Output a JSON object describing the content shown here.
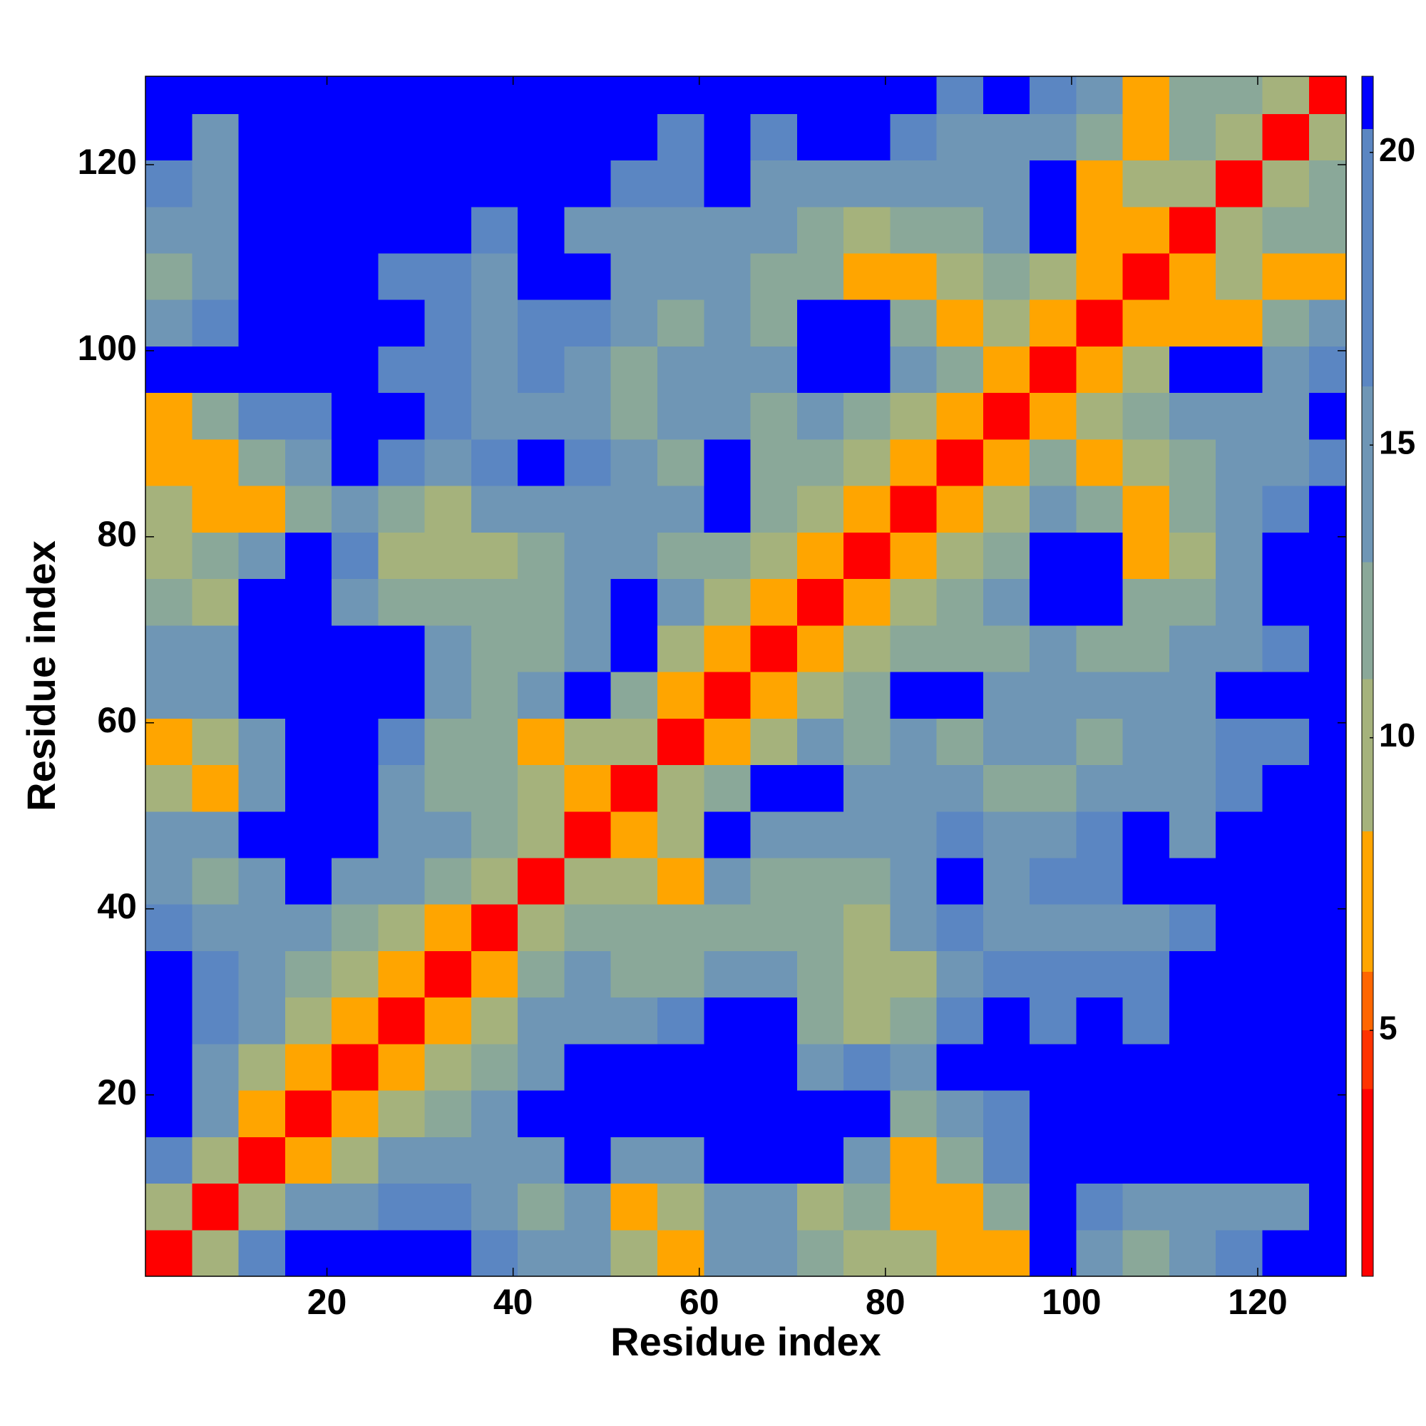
{
  "chart_data": {
    "type": "heatmap",
    "x_label": "Residue index",
    "y_label": "Residue index",
    "x": [
      3,
      8,
      13,
      18,
      23,
      28,
      33,
      38,
      43,
      48,
      53,
      58,
      63,
      68,
      73,
      78,
      83,
      88,
      93,
      98,
      103,
      108,
      113,
      118,
      123,
      128
    ],
    "y": [
      3,
      8,
      13,
      18,
      23,
      28,
      33,
      38,
      43,
      48,
      53,
      58,
      63,
      68,
      73,
      78,
      83,
      88,
      93,
      98,
      103,
      108,
      113,
      118,
      123,
      128
    ],
    "z": [
      [
        3.8,
        10,
        16,
        21,
        21,
        21,
        21,
        16,
        14,
        15,
        9,
        7,
        14,
        13,
        12,
        10,
        9,
        8,
        7,
        21,
        14,
        12,
        13,
        16,
        21,
        21
      ],
      [
        10,
        3.8,
        10,
        14,
        15,
        16,
        16,
        14,
        12,
        14,
        7,
        9,
        15,
        14,
        10,
        11,
        8,
        7,
        12,
        21,
        16,
        15,
        15,
        15,
        15,
        21
      ],
      [
        16,
        10,
        3.8,
        7,
        9,
        14,
        15,
        13,
        14,
        21,
        13,
        14,
        21,
        21,
        21,
        13,
        7,
        12,
        16,
        21,
        21,
        21,
        21,
        21,
        21,
        21
      ],
      [
        21,
        14,
        7,
        3.8,
        7,
        9,
        12,
        14,
        21,
        21,
        21,
        21,
        21,
        21,
        21,
        21,
        12,
        15,
        16,
        21,
        21,
        21,
        21,
        21,
        21,
        21
      ],
      [
        21,
        15,
        9,
        7,
        3.8,
        7,
        9,
        12,
        14,
        21,
        21,
        21,
        21,
        21,
        15,
        16,
        14,
        21,
        21,
        21,
        21,
        21,
        21,
        21,
        21,
        21
      ],
      [
        21,
        16,
        14,
        9,
        7,
        3.8,
        7,
        9,
        13,
        14,
        15,
        16,
        21,
        21,
        11,
        10,
        12,
        16,
        21,
        16,
        21,
        16,
        21,
        21,
        21,
        21
      ],
      [
        21,
        16,
        15,
        12,
        9,
        7,
        3.8,
        7,
        12,
        13,
        12,
        12,
        15,
        14,
        11,
        9,
        10,
        15,
        16,
        16,
        16,
        16,
        21,
        21,
        21,
        21
      ],
      [
        16,
        14,
        13,
        14,
        12,
        9,
        7,
        3.8,
        9,
        12,
        11,
        11,
        12,
        12,
        11,
        10,
        14,
        16,
        15,
        15,
        15,
        15,
        16,
        21,
        21,
        21
      ],
      [
        14,
        12,
        14,
        21,
        14,
        13,
        12,
        9,
        3.8,
        9,
        9,
        7,
        14,
        12,
        12,
        12,
        15,
        21,
        14,
        16,
        16,
        21,
        21,
        21,
        21,
        21
      ],
      [
        15,
        14,
        21,
        21,
        21,
        14,
        13,
        12,
        9,
        3.8,
        7,
        10,
        21,
        15,
        14,
        15,
        15,
        16,
        13,
        14,
        16,
        21,
        15,
        21,
        21,
        21
      ],
      [
        9,
        7,
        13,
        21,
        21,
        15,
        12,
        11,
        9,
        7,
        3.8,
        9,
        12,
        21,
        21,
        15,
        14,
        13,
        12,
        12,
        14,
        15,
        14,
        16,
        21,
        21
      ],
      [
        7,
        9,
        14,
        21,
        21,
        16,
        12,
        11,
        7,
        10,
        9,
        3.8,
        7,
        10,
        14,
        12,
        14,
        11,
        14,
        13,
        12,
        14,
        15,
        16,
        16,
        21
      ],
      [
        14,
        15,
        21,
        21,
        21,
        21,
        15,
        12,
        14,
        21,
        12,
        7,
        3.8,
        7,
        9,
        11,
        21,
        21,
        14,
        15,
        14,
        13,
        14,
        21,
        21,
        21
      ],
      [
        13,
        14,
        21,
        21,
        21,
        21,
        14,
        12,
        12,
        15,
        21,
        10,
        7,
        3.8,
        7,
        9,
        12,
        11,
        12,
        14,
        12,
        12,
        13,
        15,
        16,
        21
      ],
      [
        12,
        10,
        21,
        21,
        15,
        11,
        11,
        11,
        12,
        14,
        21,
        14,
        9,
        7,
        3.8,
        7,
        9,
        12,
        13,
        21,
        21,
        11,
        12,
        15,
        21,
        21
      ],
      [
        10,
        11,
        13,
        21,
        16,
        10,
        9,
        10,
        12,
        15,
        15,
        12,
        11,
        9,
        7,
        3.8,
        7,
        9,
        12,
        21,
        21,
        8,
        10,
        14,
        21,
        21
      ],
      [
        9,
        8,
        7,
        12,
        14,
        12,
        10,
        14,
        15,
        15,
        14,
        14,
        21,
        12,
        9,
        7,
        3.8,
        7,
        10,
        14,
        11,
        7,
        12,
        14,
        16,
        21
      ],
      [
        8,
        7,
        12,
        15,
        21,
        16,
        15,
        16,
        21,
        16,
        13,
        11,
        21,
        11,
        12,
        9,
        7,
        3.8,
        8,
        11,
        7,
        10,
        12,
        14,
        15,
        16
      ],
      [
        7,
        12,
        16,
        16,
        21,
        21,
        16,
        15,
        14,
        13,
        12,
        14,
        14,
        12,
        13,
        12,
        10,
        8,
        3.8,
        8,
        9,
        12,
        14,
        13,
        15,
        21
      ],
      [
        21,
        21,
        21,
        21,
        21,
        16,
        16,
        15,
        16,
        14,
        12,
        13,
        15,
        14,
        21,
        21,
        14,
        11,
        8,
        3.8,
        8,
        9,
        21,
        21,
        14,
        16
      ],
      [
        14,
        16,
        21,
        21,
        21,
        21,
        16,
        15,
        16,
        16,
        14,
        12,
        14,
        12,
        21,
        21,
        11,
        7,
        9,
        8,
        3.8,
        8,
        7,
        8,
        11,
        14
      ],
      [
        12,
        15,
        21,
        21,
        21,
        16,
        16,
        15,
        21,
        21,
        15,
        14,
        13,
        12,
        11,
        8,
        7,
        10,
        12,
        9,
        8,
        3.8,
        8,
        9,
        8,
        7
      ],
      [
        13,
        15,
        21,
        21,
        21,
        21,
        21,
        16,
        21,
        15,
        14,
        15,
        14,
        13,
        12,
        10,
        12,
        12,
        14,
        21,
        7,
        8,
        3.8,
        9,
        12,
        12
      ],
      [
        16,
        15,
        21,
        21,
        21,
        21,
        21,
        21,
        21,
        21,
        16,
        16,
        21,
        15,
        15,
        14,
        14,
        14,
        13,
        21,
        8,
        9,
        9,
        3.8,
        9,
        12
      ],
      [
        21,
        15,
        21,
        21,
        21,
        21,
        21,
        21,
        21,
        21,
        21,
        16,
        21,
        16,
        21,
        21,
        16,
        15,
        15,
        14,
        11,
        8,
        12,
        9,
        3.8,
        9
      ],
      [
        21,
        21,
        21,
        21,
        21,
        21,
        21,
        21,
        21,
        21,
        21,
        21,
        21,
        21,
        21,
        21,
        21,
        16,
        21,
        16,
        14,
        7,
        12,
        12,
        9,
        3.8
      ]
    ],
    "xlim": [
      0.5,
      129.5
    ],
    "ylim": [
      0.5,
      129.5
    ],
    "xticks": [
      20,
      40,
      60,
      80,
      100,
      120
    ],
    "yticks": [
      20,
      40,
      60,
      80,
      100,
      120
    ],
    "colorbar": {
      "bounds": [
        0.8,
        4,
        5,
        6,
        8.4,
        11,
        13,
        16,
        20.4,
        21.3
      ],
      "colors": [
        "#ff0000",
        "#ff3300",
        "#ff6600",
        "#ffa500",
        "#a5b27c",
        "#8aa899",
        "#6f96b5",
        "#5b86c2",
        "#0000ff"
      ],
      "ticks": [
        5,
        10,
        15,
        20
      ]
    }
  }
}
